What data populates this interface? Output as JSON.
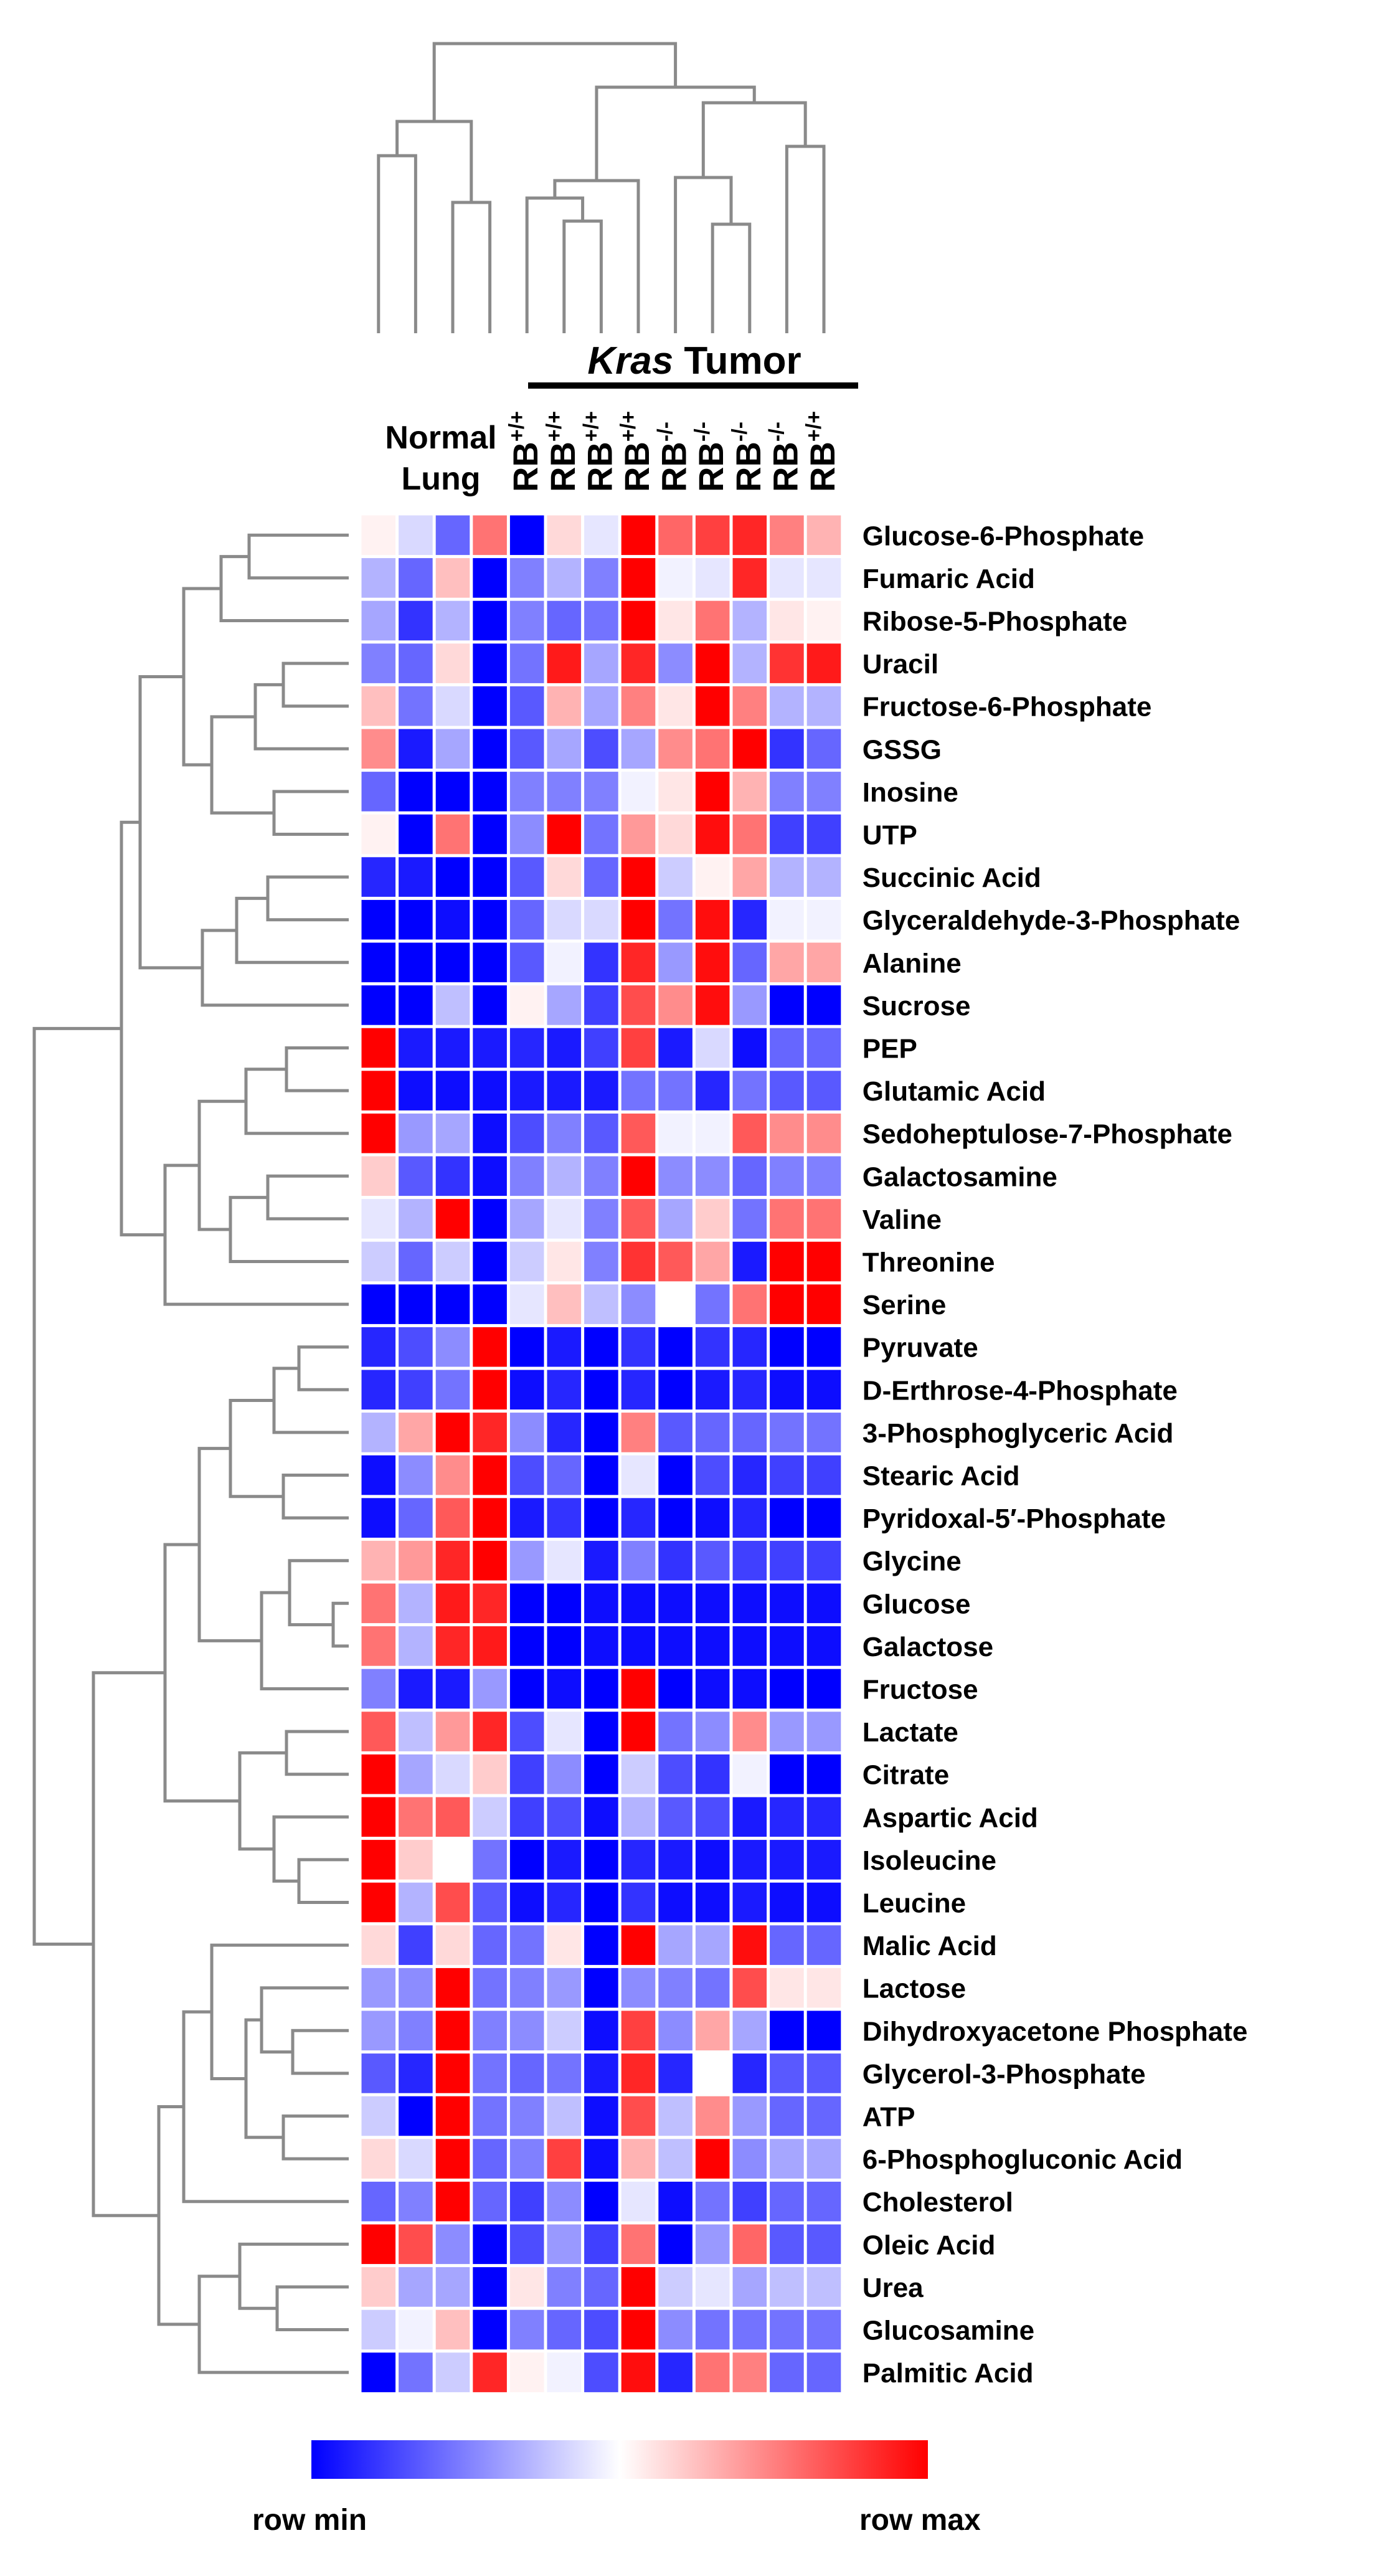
{
  "chart_data": {
    "type": "heatmap",
    "title": "",
    "group_header": {
      "italic": "Kras",
      "rest": " Tumor"
    },
    "normal_label_lines": [
      "Normal",
      "Lung"
    ],
    "colorbar": {
      "min_label": "row min",
      "max_label": "row max",
      "colors": {
        "min": "#0000ff",
        "mid": "#ffffff",
        "max": "#ff0000"
      }
    },
    "columns": [
      {
        "id": "N1",
        "group": "Normal Lung",
        "base": "",
        "sup": ""
      },
      {
        "id": "N2",
        "group": "Normal Lung",
        "base": "",
        "sup": ""
      },
      {
        "id": "N3",
        "group": "Normal Lung",
        "base": "",
        "sup": ""
      },
      {
        "id": "N4",
        "group": "Normal Lung",
        "base": "",
        "sup": ""
      },
      {
        "id": "T1",
        "group": "Kras Tumor",
        "base": "RB",
        "sup": "+/+"
      },
      {
        "id": "T2",
        "group": "Kras Tumor",
        "base": "RB",
        "sup": "+/+"
      },
      {
        "id": "T3",
        "group": "Kras Tumor",
        "base": "RB",
        "sup": "+/+"
      },
      {
        "id": "T4",
        "group": "Kras Tumor",
        "base": "RB",
        "sup": "+/+"
      },
      {
        "id": "T5",
        "group": "Kras Tumor",
        "base": "RB",
        "sup": "-/-"
      },
      {
        "id": "T6",
        "group": "Kras Tumor",
        "base": "RB",
        "sup": "-/-"
      },
      {
        "id": "T7",
        "group": "Kras Tumor",
        "base": "RB",
        "sup": "-/-"
      },
      {
        "id": "T8",
        "group": "Kras Tumor",
        "base": "RB",
        "sup": "-/-"
      },
      {
        "id": "T9",
        "group": "Kras Tumor",
        "base": "RB",
        "sup": "+/+"
      }
    ],
    "note": "values are row-normalized, -1 = row min (blue), 1 = row max (red); estimated from colors",
    "rows": [
      {
        "name": "Glucose-6-Phosphate",
        "values": [
          0.05,
          -0.15,
          -0.6,
          0.55,
          -1,
          0.15,
          -0.1,
          1,
          0.6,
          0.75,
          0.85,
          0.5,
          0.3
        ]
      },
      {
        "name": "Fumaric Acid",
        "values": [
          -0.3,
          -0.6,
          0.25,
          -1,
          -0.5,
          -0.3,
          -0.5,
          1,
          -0.05,
          -0.1,
          0.85,
          -0.1,
          -0.1
        ]
      },
      {
        "name": "Ribose-5-Phosphate",
        "values": [
          -0.35,
          -0.8,
          -0.3,
          -1,
          -0.5,
          -0.6,
          -0.55,
          1,
          0.1,
          0.55,
          -0.3,
          0.1,
          0.05
        ]
      },
      {
        "name": "Uracil",
        "values": [
          -0.5,
          -0.6,
          0.15,
          -1,
          -0.55,
          0.9,
          -0.35,
          0.85,
          -0.45,
          1,
          -0.3,
          0.8,
          0.9
        ]
      },
      {
        "name": "Fructose-6-Phosphate",
        "values": [
          0.25,
          -0.55,
          -0.15,
          -1,
          -0.65,
          0.3,
          -0.35,
          0.5,
          0.1,
          1,
          0.5,
          -0.3,
          -0.3
        ]
      },
      {
        "name": "GSSG",
        "values": [
          0.45,
          -0.9,
          -0.35,
          -1,
          -0.65,
          -0.35,
          -0.7,
          -0.35,
          0.45,
          0.55,
          1,
          -0.8,
          -0.6
        ]
      },
      {
        "name": "Inosine",
        "values": [
          -0.6,
          -1,
          -1,
          -1,
          -0.5,
          -0.5,
          -0.5,
          -0.05,
          0.1,
          1,
          0.3,
          -0.5,
          -0.5
        ]
      },
      {
        "name": "UTP",
        "values": [
          0.05,
          -1,
          0.55,
          -1,
          -0.45,
          1,
          -0.55,
          0.4,
          0.15,
          0.95,
          0.55,
          -0.75,
          -0.75
        ]
      },
      {
        "name": "Succinic Acid",
        "values": [
          -0.85,
          -0.9,
          -1,
          -1,
          -0.65,
          0.15,
          -0.6,
          1,
          -0.2,
          0.05,
          0.35,
          -0.3,
          -0.3
        ]
      },
      {
        "name": "Glyceraldehyde-3-Phosphate",
        "values": [
          -1,
          -1,
          -0.95,
          -1,
          -0.6,
          -0.15,
          -0.15,
          1,
          -0.55,
          0.95,
          -0.85,
          -0.05,
          -0.05
        ]
      },
      {
        "name": "Alanine",
        "values": [
          -1,
          -1,
          -1,
          -1,
          -0.65,
          -0.05,
          -0.8,
          0.85,
          -0.4,
          0.95,
          -0.6,
          0.35,
          0.35
        ]
      },
      {
        "name": "Sucrose",
        "values": [
          -1,
          -1,
          -0.25,
          -1,
          0.05,
          -0.35,
          -0.75,
          0.7,
          0.45,
          0.95,
          -0.4,
          -1,
          -1
        ]
      },
      {
        "name": "PEP",
        "values": [
          1,
          -0.9,
          -0.9,
          -0.9,
          -0.85,
          -0.9,
          -0.75,
          0.75,
          -0.9,
          -0.15,
          -0.95,
          -0.6,
          -0.6
        ]
      },
      {
        "name": "Glutamic Acid",
        "values": [
          1,
          -0.95,
          -0.95,
          -0.95,
          -0.9,
          -0.9,
          -0.9,
          -0.55,
          -0.55,
          -0.85,
          -0.55,
          -0.65,
          -0.65
        ]
      },
      {
        "name": "Sedoheptulose-7-Phosphate",
        "values": [
          1,
          -0.4,
          -0.35,
          -0.95,
          -0.7,
          -0.5,
          -0.65,
          0.65,
          -0.05,
          -0.05,
          0.65,
          0.45,
          0.45
        ]
      },
      {
        "name": "Galactosamine",
        "values": [
          0.2,
          -0.65,
          -0.8,
          -0.95,
          -0.5,
          -0.3,
          -0.5,
          1,
          -0.45,
          -0.45,
          -0.6,
          -0.5,
          -0.5
        ]
      },
      {
        "name": "Valine",
        "values": [
          -0.1,
          -0.3,
          1,
          -1,
          -0.35,
          -0.1,
          -0.5,
          0.65,
          -0.35,
          0.2,
          -0.55,
          0.55,
          0.55
        ]
      },
      {
        "name": "Threonine",
        "values": [
          -0.2,
          -0.6,
          -0.2,
          -1,
          -0.2,
          0.1,
          -0.5,
          0.8,
          0.65,
          0.35,
          -0.9,
          1,
          1
        ]
      },
      {
        "name": "Serine",
        "values": [
          -1,
          -1,
          -1,
          -1,
          -0.1,
          0.25,
          -0.25,
          -0.45,
          0,
          -0.55,
          0.55,
          1,
          1
        ]
      },
      {
        "name": "Pyruvate",
        "values": [
          -0.85,
          -0.7,
          -0.45,
          1,
          -1,
          -0.9,
          -1,
          -0.8,
          -1,
          -0.8,
          -0.85,
          -1,
          -1
        ]
      },
      {
        "name": "D-Erthrose-4-Phosphate",
        "values": [
          -0.85,
          -0.75,
          -0.55,
          1,
          -0.95,
          -0.85,
          -1,
          -0.85,
          -1,
          -0.9,
          -0.85,
          -0.95,
          -0.95
        ]
      },
      {
        "name": "3-Phosphoglyceric Acid",
        "values": [
          -0.3,
          0.35,
          1,
          0.85,
          -0.45,
          -0.85,
          -1,
          0.5,
          -0.65,
          -0.6,
          -0.6,
          -0.55,
          -0.55
        ]
      },
      {
        "name": "Stearic Acid",
        "values": [
          -0.95,
          -0.45,
          0.45,
          1,
          -0.7,
          -0.6,
          -1,
          -0.1,
          -1,
          -0.7,
          -0.85,
          -0.75,
          -0.75
        ]
      },
      {
        "name": "Pyridoxal-5′-Phosphate",
        "values": [
          -0.95,
          -0.6,
          0.65,
          1,
          -0.9,
          -0.8,
          -1,
          -0.85,
          -1,
          -0.95,
          -0.85,
          -1,
          -1
        ]
      },
      {
        "name": "Glycine",
        "values": [
          0.3,
          0.4,
          0.85,
          1,
          -0.4,
          -0.1,
          -0.9,
          -0.5,
          -0.8,
          -0.65,
          -0.75,
          -0.75,
          -0.75
        ]
      },
      {
        "name": "Glucose",
        "values": [
          0.55,
          -0.3,
          0.9,
          0.85,
          -1,
          -1,
          -0.95,
          -0.95,
          -0.95,
          -0.95,
          -0.95,
          -0.95,
          -0.95
        ]
      },
      {
        "name": "Galactose",
        "values": [
          0.55,
          -0.3,
          0.85,
          0.9,
          -1,
          -1,
          -0.95,
          -0.95,
          -0.95,
          -0.95,
          -0.95,
          -0.95,
          -0.95
        ]
      },
      {
        "name": "Fructose",
        "values": [
          -0.5,
          -0.9,
          -0.9,
          -0.4,
          -1,
          -0.95,
          -1,
          1,
          -1,
          -0.95,
          -0.95,
          -1,
          -1
        ]
      },
      {
        "name": "Lactate",
        "values": [
          0.65,
          -0.25,
          0.4,
          0.85,
          -0.7,
          -0.1,
          -1,
          1,
          -0.55,
          -0.45,
          0.45,
          -0.4,
          -0.4
        ]
      },
      {
        "name": "Citrate",
        "values": [
          1,
          -0.35,
          -0.15,
          0.2,
          -0.75,
          -0.45,
          -1,
          -0.2,
          -0.7,
          -0.8,
          -0.05,
          -1,
          -1
        ]
      },
      {
        "name": "Aspartic Acid",
        "values": [
          1,
          0.55,
          0.65,
          -0.2,
          -0.75,
          -0.7,
          -0.95,
          -0.3,
          -0.65,
          -0.7,
          -0.9,
          -0.85,
          -0.85
        ]
      },
      {
        "name": "Isoleucine",
        "values": [
          1,
          0.2,
          0,
          -0.55,
          -1,
          -0.9,
          -1,
          -0.85,
          -0.9,
          -0.95,
          -0.9,
          -0.9,
          -0.9
        ]
      },
      {
        "name": "Leucine",
        "values": [
          1,
          -0.3,
          0.7,
          -0.65,
          -0.95,
          -0.85,
          -1,
          -0.8,
          -0.95,
          -0.95,
          -0.9,
          -0.95,
          -0.95
        ]
      },
      {
        "name": "Malic Acid",
        "values": [
          0.15,
          -0.75,
          0.15,
          -0.6,
          -0.55,
          0.1,
          -1,
          1,
          -0.35,
          -0.35,
          0.95,
          -0.6,
          -0.6
        ]
      },
      {
        "name": "Lactose",
        "values": [
          -0.4,
          -0.45,
          1,
          -0.55,
          -0.5,
          -0.4,
          -1,
          -0.45,
          -0.5,
          -0.55,
          0.7,
          0.1,
          0.1
        ]
      },
      {
        "name": "Dihydroxyacetone Phosphate",
        "values": [
          -0.4,
          -0.5,
          1,
          -0.5,
          -0.45,
          -0.2,
          -0.95,
          0.75,
          -0.45,
          0.35,
          -0.35,
          -1,
          -1
        ]
      },
      {
        "name": "Glycerol-3-Phosphate",
        "values": [
          -0.65,
          -0.85,
          1,
          -0.55,
          -0.6,
          -0.55,
          -0.9,
          0.85,
          -0.85,
          0,
          -0.85,
          -0.65,
          -0.65
        ]
      },
      {
        "name": "ATP",
        "values": [
          -0.2,
          -1,
          1,
          -0.55,
          -0.5,
          -0.25,
          -0.95,
          0.7,
          -0.25,
          0.45,
          -0.4,
          -0.6,
          -0.6
        ]
      },
      {
        "name": "6-Phosphogluconic Acid",
        "values": [
          0.15,
          -0.15,
          1,
          -0.6,
          -0.5,
          0.75,
          -0.95,
          0.3,
          -0.25,
          1,
          -0.45,
          -0.35,
          -0.35
        ]
      },
      {
        "name": "Cholesterol",
        "values": [
          -0.6,
          -0.5,
          1,
          -0.6,
          -0.75,
          -0.45,
          -1,
          -0.1,
          -0.95,
          -0.55,
          -0.75,
          -0.6,
          -0.6
        ]
      },
      {
        "name": "Oleic Acid",
        "values": [
          1,
          0.7,
          -0.45,
          -1,
          -0.7,
          -0.4,
          -0.75,
          0.55,
          -1,
          -0.4,
          0.6,
          -0.65,
          -0.65
        ]
      },
      {
        "name": "Urea",
        "values": [
          0.2,
          -0.35,
          -0.35,
          -1,
          0.1,
          -0.5,
          -0.6,
          1,
          -0.2,
          -0.1,
          -0.35,
          -0.25,
          -0.25
        ]
      },
      {
        "name": "Glucosamine",
        "values": [
          -0.2,
          -0.05,
          0.25,
          -1,
          -0.5,
          -0.6,
          -0.7,
          1,
          -0.45,
          -0.55,
          -0.55,
          -0.55,
          -0.55
        ]
      },
      {
        "name": "Palmitic Acid",
        "values": [
          -1,
          -0.55,
          -0.2,
          0.85,
          0.05,
          -0.05,
          -0.7,
          0.95,
          -0.85,
          0.55,
          0.5,
          -0.6,
          -0.6
        ]
      }
    ]
  }
}
